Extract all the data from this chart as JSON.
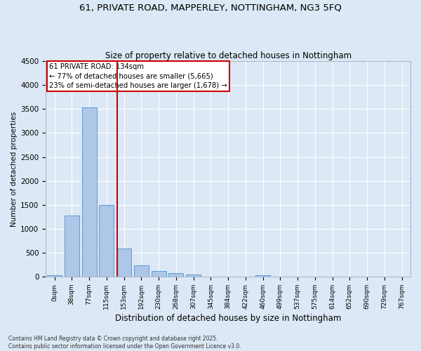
{
  "title1": "61, PRIVATE ROAD, MAPPERLEY, NOTTINGHAM, NG3 5FQ",
  "title2": "Size of property relative to detached houses in Nottingham",
  "xlabel": "Distribution of detached houses by size in Nottingham",
  "ylabel": "Number of detached properties",
  "bar_labels": [
    "0sqm",
    "38sqm",
    "77sqm",
    "115sqm",
    "153sqm",
    "192sqm",
    "230sqm",
    "268sqm",
    "307sqm",
    "345sqm",
    "384sqm",
    "422sqm",
    "460sqm",
    "499sqm",
    "537sqm",
    "575sqm",
    "614sqm",
    "652sqm",
    "690sqm",
    "729sqm",
    "767sqm"
  ],
  "bar_values": [
    30,
    1280,
    3530,
    1490,
    590,
    240,
    110,
    75,
    45,
    0,
    0,
    0,
    35,
    0,
    0,
    0,
    0,
    0,
    0,
    0,
    0
  ],
  "bar_color": "#aec6e8",
  "bar_edgecolor": "#5b9bd5",
  "bg_color": "#dce8f5",
  "grid_color": "#ffffff",
  "vline_x": 3.6,
  "vline_color": "#cc0000",
  "annotation_text": "61 PRIVATE ROAD: 134sqm\n← 77% of detached houses are smaller (5,665)\n23% of semi-detached houses are larger (1,678) →",
  "annotation_box_color": "#cc0000",
  "ylim": [
    0,
    4500
  ],
  "yticks": [
    0,
    500,
    1000,
    1500,
    2000,
    2500,
    3000,
    3500,
    4000,
    4500
  ],
  "footer1": "Contains HM Land Registry data © Crown copyright and database right 2025.",
  "footer2": "Contains public sector information licensed under the Open Government Licence v3.0."
}
